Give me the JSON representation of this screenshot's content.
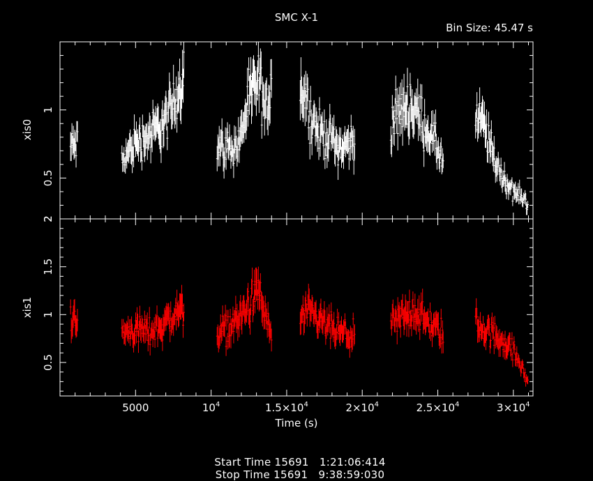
{
  "chart_data": {
    "type": "scatter",
    "title": "SMC X-1",
    "bin_size_label": "Bin Size:  45.47  s",
    "xlabel": "Time (s)",
    "x_range": [
      0,
      31300
    ],
    "x_tick_labels": [
      {
        "value": 5000,
        "label": "5000"
      },
      {
        "value": 10000,
        "base": "10",
        "exp": "4"
      },
      {
        "value": 15000,
        "base": "1.5×10",
        "exp": "4"
      },
      {
        "value": 20000,
        "base": "2×10",
        "exp": "4"
      },
      {
        "value": 25000,
        "base": "2.5×10",
        "exp": "4"
      },
      {
        "value": 30000,
        "base": "3×10",
        "exp": "4"
      }
    ],
    "panels": [
      {
        "ylabel": "xis0",
        "ylim": [
          0.2,
          1.5
        ],
        "y_tick_labels": [
          {
            "value": 0.5,
            "label": "0.5"
          },
          {
            "value": 1.0,
            "label": "1"
          }
        ],
        "corner_label": "2",
        "color": "#ffffff",
        "segments": [
          {
            "t0": 700,
            "t1": 1200,
            "points": [
              [
                700,
                0.72
              ],
              [
                1200,
                0.76
              ]
            ]
          },
          {
            "t0": 4100,
            "t1": 8200,
            "points": [
              [
                4100,
                0.62
              ],
              [
                5000,
                0.76
              ],
              [
                6000,
                0.82
              ],
              [
                7000,
                0.92
              ],
              [
                7600,
                1.05
              ],
              [
                8200,
                1.3
              ]
            ]
          },
          {
            "t0": 10400,
            "t1": 14000,
            "points": [
              [
                10400,
                0.74
              ],
              [
                11000,
                0.72
              ],
              [
                11800,
                0.74
              ],
              [
                12300,
                0.98
              ],
              [
                12800,
                1.15
              ],
              [
                13200,
                1.2
              ],
              [
                13600,
                0.95
              ],
              [
                14000,
                1.25
              ]
            ]
          },
          {
            "t0": 15900,
            "t1": 19500,
            "points": [
              [
                15900,
                1.2
              ],
              [
                16500,
                1.0
              ],
              [
                17000,
                0.85
              ],
              [
                18000,
                0.78
              ],
              [
                18700,
                0.72
              ],
              [
                19500,
                0.78
              ]
            ]
          },
          {
            "t0": 21900,
            "t1": 25400,
            "points": [
              [
                21900,
                0.88
              ],
              [
                22500,
                0.98
              ],
              [
                23000,
                1.05
              ],
              [
                23500,
                1.0
              ],
              [
                24200,
                0.88
              ],
              [
                25000,
                0.72
              ],
              [
                25400,
                0.6
              ]
            ]
          },
          {
            "t0": 27500,
            "t1": 31000,
            "points": [
              [
                27500,
                0.9
              ],
              [
                28000,
                0.9
              ],
              [
                28500,
                0.72
              ],
              [
                29200,
                0.52
              ],
              [
                30000,
                0.4
              ],
              [
                31000,
                0.32
              ]
            ]
          }
        ]
      },
      {
        "ylabel": "xis1",
        "ylim": [
          0.15,
          2.0
        ],
        "y_tick_labels": [
          {
            "value": 0.5,
            "label": "0.5"
          },
          {
            "value": 1.0,
            "label": "1"
          },
          {
            "value": 1.5,
            "label": "1.5"
          },
          {
            "value": 2.0,
            "label": "2"
          }
        ],
        "color": "#ff0000",
        "segments": [
          {
            "t0": 700,
            "t1": 1200,
            "points": [
              [
                700,
                0.95
              ],
              [
                1200,
                0.9
              ]
            ]
          },
          {
            "t0": 4100,
            "t1": 8200,
            "points": [
              [
                4100,
                0.8
              ],
              [
                5000,
                0.85
              ],
              [
                6000,
                0.82
              ],
              [
                7000,
                0.92
              ],
              [
                7600,
                1.0
              ],
              [
                8200,
                1.05
              ]
            ]
          },
          {
            "t0": 10400,
            "t1": 14000,
            "points": [
              [
                10400,
                0.82
              ],
              [
                11000,
                0.85
              ],
              [
                11800,
                0.95
              ],
              [
                12300,
                1.05
              ],
              [
                12800,
                1.15
              ],
              [
                13200,
                1.25
              ],
              [
                13600,
                0.95
              ],
              [
                14000,
                0.8
              ]
            ]
          },
          {
            "t0": 15900,
            "t1": 19500,
            "points": [
              [
                15900,
                0.95
              ],
              [
                16500,
                1.0
              ],
              [
                17000,
                0.95
              ],
              [
                18000,
                0.85
              ],
              [
                18700,
                0.8
              ],
              [
                19500,
                0.78
              ]
            ]
          },
          {
            "t0": 21900,
            "t1": 25400,
            "points": [
              [
                21900,
                0.88
              ],
              [
                22500,
                0.95
              ],
              [
                23000,
                1.0
              ],
              [
                23500,
                1.05
              ],
              [
                24200,
                0.92
              ],
              [
                25000,
                0.85
              ],
              [
                25400,
                0.8
              ]
            ]
          },
          {
            "t0": 27500,
            "t1": 31000,
            "points": [
              [
                27500,
                0.92
              ],
              [
                28000,
                0.85
              ],
              [
                28500,
                0.8
              ],
              [
                29200,
                0.75
              ],
              [
                30000,
                0.62
              ],
              [
                31000,
                0.3
              ]
            ]
          }
        ]
      }
    ]
  },
  "footer": {
    "start": "Start Time 15691   1:21:06:414",
    "stop": "Stop Time 15691   9:38:59:030"
  }
}
